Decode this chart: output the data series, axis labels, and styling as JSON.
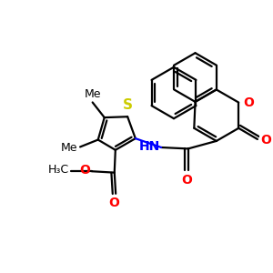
{
  "bg_color": "#ffffff",
  "bond_color": "#000000",
  "s_color": "#cccc00",
  "o_color": "#ff0000",
  "n_color": "#0000ff",
  "lw": 1.6,
  "figsize": [
    3.0,
    3.0
  ],
  "dpi": 100,
  "xlim": [
    0,
    10
  ],
  "ylim": [
    0,
    10
  ]
}
